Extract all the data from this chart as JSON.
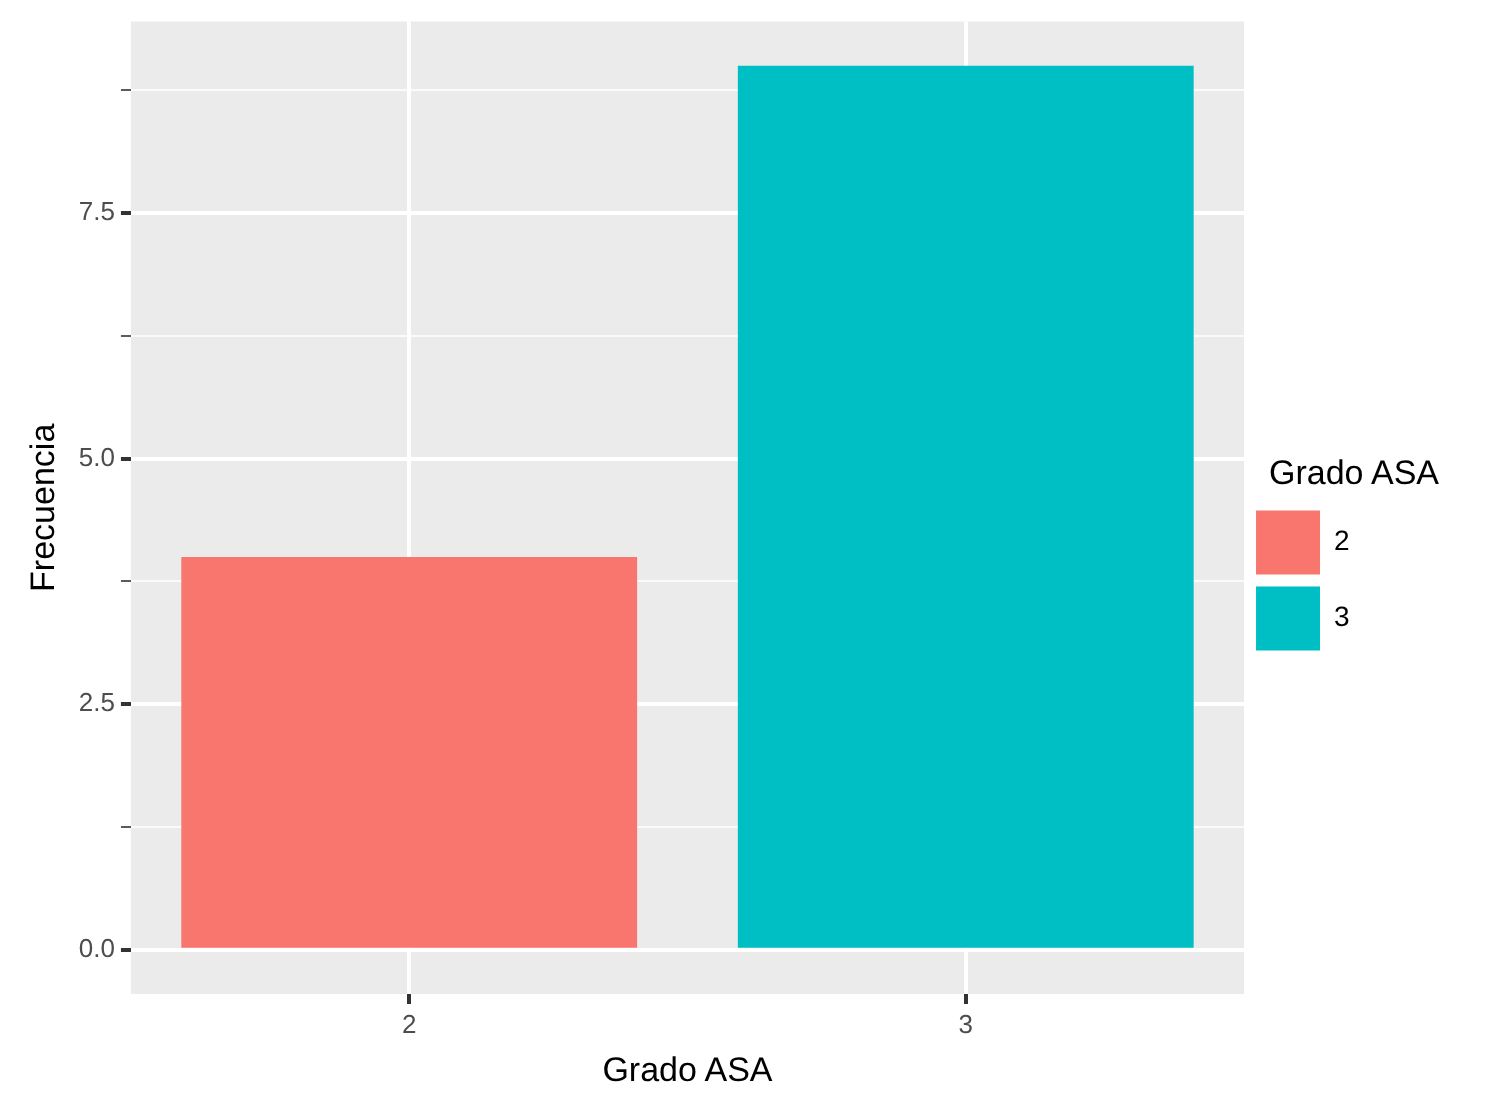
{
  "chart_data": {
    "type": "bar",
    "xlabel": "Grado ASA",
    "ylabel": "Frecuencia",
    "legend_title": "Grado ASA",
    "categories": [
      "2",
      "3"
    ],
    "series": [
      {
        "name": "2",
        "color": "#f8766d",
        "values": [
          4,
          null
        ]
      },
      {
        "name": "3",
        "color": "#00bfc4",
        "values": [
          null,
          9
        ]
      }
    ],
    "ylim": [
      -0.45,
      9.45
    ],
    "yticks": [
      {
        "value": 0,
        "label": "0.0"
      },
      {
        "value": 1.25,
        "label": null
      },
      {
        "value": 2.5,
        "label": "2.5"
      },
      {
        "value": 3.75,
        "label": null
      },
      {
        "value": 5,
        "label": "5.0"
      },
      {
        "value": 6.25,
        "label": null
      },
      {
        "value": 7.5,
        "label": "7.5"
      },
      {
        "value": 8.75,
        "label": null
      }
    ],
    "grid": true,
    "legend": "right"
  }
}
